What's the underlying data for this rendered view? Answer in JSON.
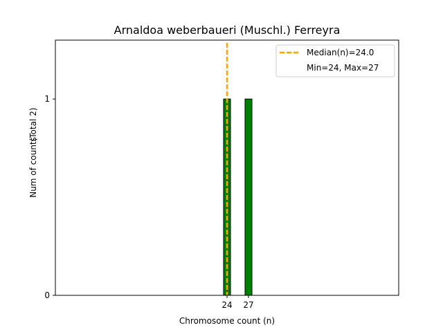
{
  "chart_data": {
    "type": "bar",
    "title": "Arnaldoa weberbaueri (Muschl.) Ferreyra",
    "xlabel": "Chromosome count (n)",
    "ylabel": "Num of counts",
    "ylabel_total": "(Total 2)",
    "x": [
      24,
      27
    ],
    "values": [
      1,
      1
    ],
    "xticks": [
      "24",
      "27"
    ],
    "yticks": [
      "0",
      "1"
    ],
    "xlim": [
      0,
      48
    ],
    "ylim": [
      0,
      1.3
    ],
    "bar_color": "#008000",
    "bar_edge_color": "#000000",
    "median": 24.0,
    "median_color": "#FFA500",
    "legend": {
      "position": "top-right",
      "entries": [
        "Median(n)=24.0",
        "Min=24, Max=27"
      ]
    },
    "grid": false
  }
}
